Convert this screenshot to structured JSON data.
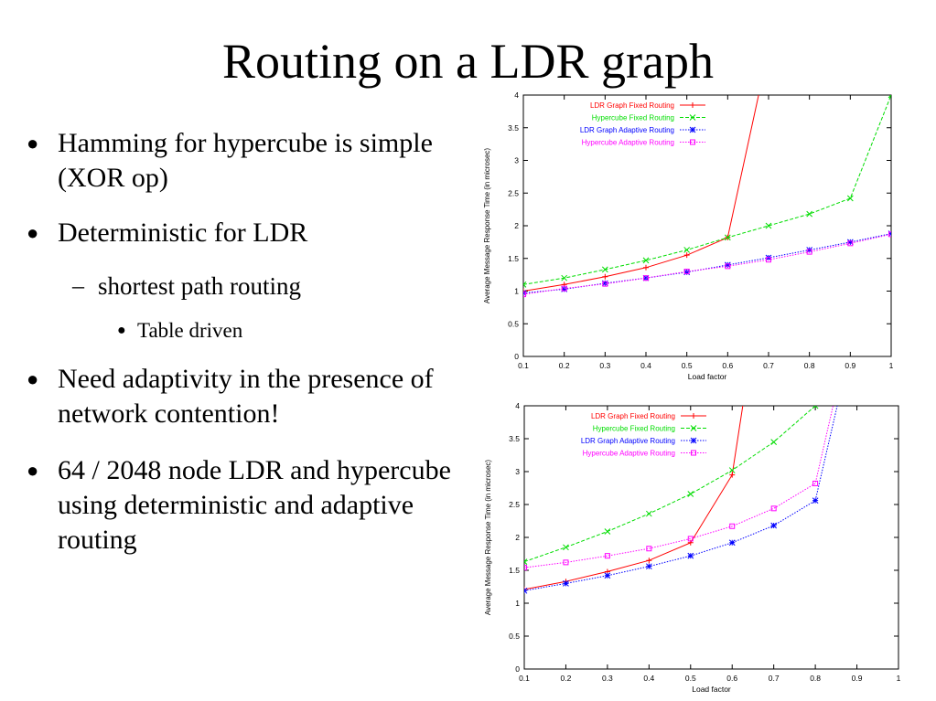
{
  "slide": {
    "title": "Routing on a LDR graph",
    "bullets": [
      {
        "level": 1,
        "text": "Hamming for hypercube is simple (XOR op)"
      },
      {
        "level": 1,
        "text": "Deterministic for LDR"
      },
      {
        "level": 2,
        "text": "shortest path routing"
      },
      {
        "level": 3,
        "text": "Table driven"
      },
      {
        "level": 1,
        "text": "Need adaptivity in the presence of network contention!"
      },
      {
        "level": 1,
        "text": "64 / 2048 node LDR and hypercube using deterministic and adaptive routing"
      }
    ],
    "markers": {
      "level1": "●",
      "level2": "–",
      "level3": "●"
    }
  },
  "chart_data": [
    {
      "type": "line",
      "title": "",
      "xlabel": "Load factor",
      "ylabel": "Average Message Response Time (in microsec)",
      "xlim": [
        0.1,
        1
      ],
      "ylim": [
        0,
        4
      ],
      "xticks": [
        0.1,
        0.2,
        0.3,
        0.4,
        0.5,
        0.6,
        0.7,
        0.8,
        0.9,
        1
      ],
      "yticks": [
        0,
        0.5,
        1,
        1.5,
        2,
        2.5,
        3,
        3.5,
        4
      ],
      "grid": false,
      "legend": "top-left",
      "series": [
        {
          "name": "LDR Graph Fixed Routing",
          "color": "#ff0000",
          "marker": "plus",
          "dash": "solid",
          "x": [
            0.1,
            0.2,
            0.3,
            0.4,
            0.5,
            0.6,
            0.7
          ],
          "y": [
            1.0,
            1.1,
            1.22,
            1.36,
            1.55,
            1.82,
            4.7
          ]
        },
        {
          "name": "Hypercube Fixed Routing",
          "color": "#00dd00",
          "marker": "cross",
          "dash": "dashed",
          "x": [
            0.1,
            0.2,
            0.3,
            0.4,
            0.5,
            0.6,
            0.7,
            0.8,
            0.9,
            1.0
          ],
          "y": [
            1.1,
            1.2,
            1.33,
            1.47,
            1.63,
            1.82,
            2.0,
            2.18,
            2.42,
            4.0
          ]
        },
        {
          "name": "LDR Graph Adaptive Routing",
          "color": "#0000ff",
          "marker": "star",
          "dash": "dotted",
          "x": [
            0.1,
            0.2,
            0.3,
            0.4,
            0.5,
            0.6,
            0.7,
            0.8,
            0.9,
            1.0
          ],
          "y": [
            0.97,
            1.03,
            1.12,
            1.2,
            1.29,
            1.4,
            1.51,
            1.63,
            1.75,
            1.88
          ]
        },
        {
          "name": "Hypercube Adaptive Routing",
          "color": "#ff00ff",
          "marker": "square",
          "dash": "dotted",
          "x": [
            0.1,
            0.2,
            0.3,
            0.4,
            0.5,
            0.6,
            0.7,
            0.8,
            0.9,
            1.0
          ],
          "y": [
            0.95,
            1.04,
            1.11,
            1.2,
            1.3,
            1.38,
            1.48,
            1.6,
            1.73,
            1.87
          ]
        }
      ]
    },
    {
      "type": "line",
      "title": "",
      "xlabel": "Load factor",
      "ylabel": "Average Message Response Time (in microsec)",
      "xlim": [
        0.1,
        1
      ],
      "ylim": [
        0,
        4
      ],
      "xticks": [
        0.1,
        0.2,
        0.3,
        0.4,
        0.5,
        0.6,
        0.7,
        0.8,
        0.9,
        1
      ],
      "yticks": [
        0,
        0.5,
        1,
        1.5,
        2,
        2.5,
        3,
        3.5,
        4
      ],
      "grid": false,
      "legend": "top-left",
      "series": [
        {
          "name": "LDR Graph Fixed Routing",
          "color": "#ff0000",
          "marker": "plus",
          "dash": "solid",
          "x": [
            0.1,
            0.2,
            0.3,
            0.4,
            0.5,
            0.6,
            0.65
          ],
          "y": [
            1.21,
            1.33,
            1.48,
            1.65,
            1.92,
            2.95,
            5.0
          ]
        },
        {
          "name": "Hypercube Fixed Routing",
          "color": "#00dd00",
          "marker": "cross",
          "dash": "dashed",
          "x": [
            0.1,
            0.2,
            0.3,
            0.4,
            0.5,
            0.6,
            0.7,
            0.8
          ],
          "y": [
            1.63,
            1.85,
            2.09,
            2.36,
            2.66,
            3.02,
            3.45,
            4.0
          ]
        },
        {
          "name": "LDR Graph Adaptive Routing",
          "color": "#0000ff",
          "marker": "star",
          "dash": "dotted",
          "x": [
            0.1,
            0.2,
            0.3,
            0.4,
            0.5,
            0.6,
            0.7,
            0.8,
            0.86
          ],
          "y": [
            1.19,
            1.3,
            1.42,
            1.56,
            1.72,
            1.92,
            2.18,
            2.56,
            4.2
          ]
        },
        {
          "name": "Hypercube Adaptive Routing",
          "color": "#ff00ff",
          "marker": "square",
          "dash": "dotted",
          "x": [
            0.1,
            0.2,
            0.3,
            0.4,
            0.5,
            0.6,
            0.7,
            0.8,
            0.85
          ],
          "y": [
            1.54,
            1.62,
            1.72,
            1.83,
            1.98,
            2.17,
            2.44,
            2.82,
            4.2
          ]
        }
      ]
    }
  ]
}
